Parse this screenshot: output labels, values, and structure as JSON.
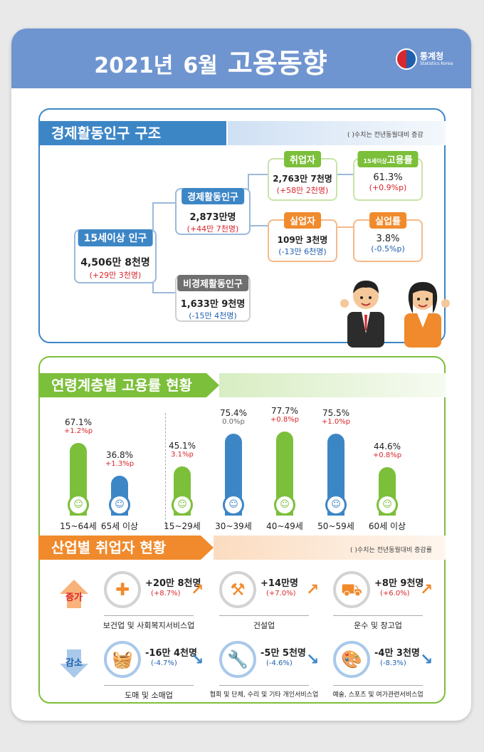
{
  "header": {
    "year": "2021년",
    "month": "6월",
    "title": "고용동향",
    "logo_name": "통계청",
    "logo_sub": "Statistics Korea"
  },
  "structure": {
    "banner": "경제활동인구 구조",
    "note": "( )수치는 전년동월대비 증감",
    "pop15": {
      "label": "15세이상 인구",
      "value": "4,506만 8천명",
      "change": "(+29만 3천명)"
    },
    "active": {
      "label": "경제활동인구",
      "value": "2,873만명",
      "change": "(+44만 7천명)"
    },
    "inactive": {
      "label": "비경제활동인구",
      "value": "1,633만 9천명",
      "change": "(-15만 4천명)"
    },
    "employed": {
      "label": "취업자",
      "value": "2,763만 7천명",
      "change": "(+58만 2천명)"
    },
    "unemployed": {
      "label": "실업자",
      "value": "109만 3천명",
      "change": "(-13만 6천명)"
    },
    "emp_rate": {
      "label_small": "15세이상",
      "label": "고용률",
      "value": "61.3%",
      "change": "(+0.9%p)"
    },
    "unemp_rate": {
      "label": "실업률",
      "value": "3.8%",
      "change": "(-0.5%p)"
    }
  },
  "age": {
    "banner": "연령계층별 고용률 현황",
    "bars": [
      {
        "age": "15~64세",
        "pct": "67.1%",
        "change": "+1.2%p",
        "value": 67.1,
        "color": "#7cbf3a",
        "change_color": "#d9262c"
      },
      {
        "age": "65세 이상",
        "pct": "36.8%",
        "change": "+1.3%p",
        "value": 36.8,
        "color": "#3d86c6",
        "change_color": "#d9262c"
      },
      {
        "age": "15~29세",
        "pct": "45.1%",
        "change": "3.1%p",
        "value": 45.1,
        "color": "#7cbf3a",
        "change_color": "#d9262c"
      },
      {
        "age": "30~39세",
        "pct": "75.4%",
        "change": "0.0%p",
        "value": 75.4,
        "color": "#3d86c6",
        "change_color": "#666666"
      },
      {
        "age": "40~49세",
        "pct": "77.7%",
        "change": "+0.8%p",
        "value": 77.7,
        "color": "#7cbf3a",
        "change_color": "#d9262c"
      },
      {
        "age": "50~59세",
        "pct": "75.5%",
        "change": "+1.0%p",
        "value": 75.5,
        "color": "#3d86c6",
        "change_color": "#d9262c"
      },
      {
        "age": "60세 이상",
        "pct": "44.6%",
        "change": "+0.8%p",
        "value": 44.6,
        "color": "#7cbf3a",
        "change_color": "#d9262c"
      }
    ]
  },
  "industry": {
    "banner": "산업별 취업자 현황",
    "note": "( )수치는 전년동월대비 증감률",
    "increase_tag": "증가",
    "decrease_tag": "감소",
    "increase": [
      {
        "name": "보건업 및 사회복지서비스업",
        "value": "+20만 8천명",
        "change": "(+8.7%)",
        "icon": "medical-kit-icon",
        "glyph": "✚"
      },
      {
        "name": "건설업",
        "value": "+14만명",
        "change": "(+7.0%)",
        "icon": "construction-crane-icon",
        "glyph": "⚒"
      },
      {
        "name": "운수 및 창고업",
        "value": "+8만 9천명",
        "change": "(+6.0%)",
        "icon": "truck-icon",
        "glyph": "⛟"
      }
    ],
    "decrease": [
      {
        "name": "도매 및 소매업",
        "value": "-16만 4천명",
        "change": "(-4.7%)",
        "icon": "shopping-basket-icon",
        "glyph": "🧺"
      },
      {
        "name": "협회 및 단체, 수리 및 기타 개인서비스업",
        "value": "-5만 5천명",
        "change": "(-4.6%)",
        "icon": "tools-icon",
        "glyph": "🔧"
      },
      {
        "name": "예술, 스포츠 및 여가관련서비스업",
        "value": "-4만 3천명",
        "change": "(-8.3%)",
        "icon": "palette-icon",
        "glyph": "🎨"
      }
    ]
  },
  "colors": {
    "header": "#6f95d0",
    "blue": "#3d86c6",
    "green": "#7cbf3a",
    "orange": "#f08a2c",
    "red": "#d9262c",
    "gray": "#6f6f6f"
  }
}
